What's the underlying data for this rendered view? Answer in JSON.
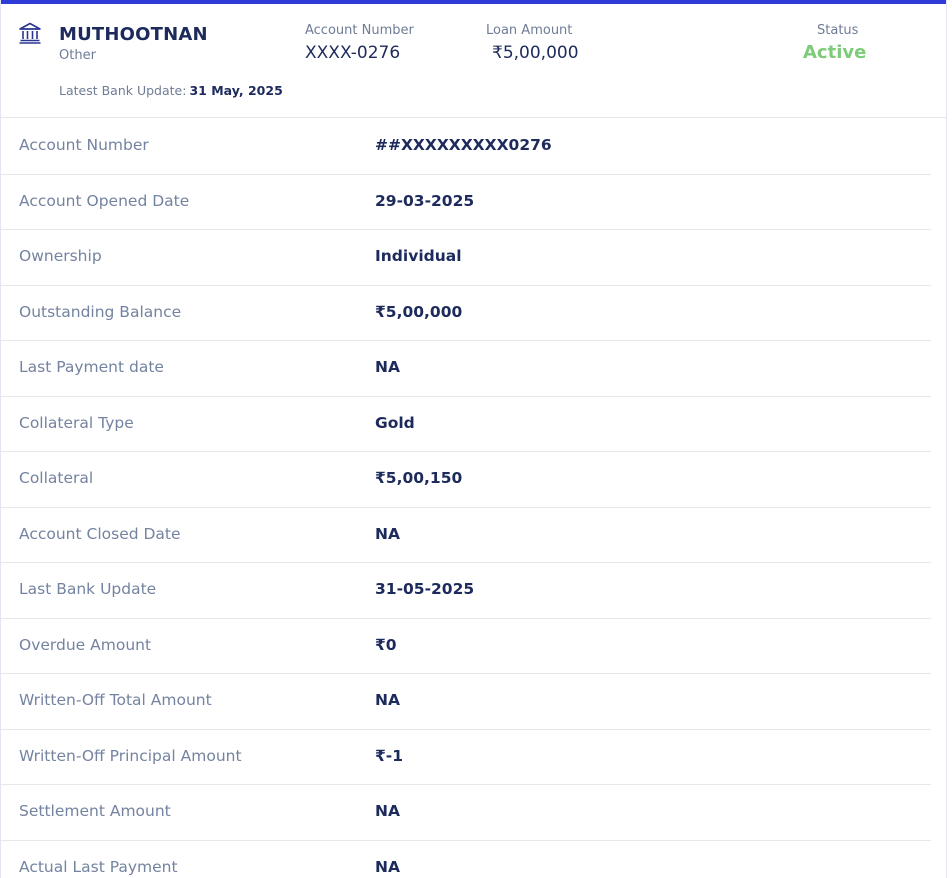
{
  "header": {
    "bank_name": "MUTHOOTNAN",
    "bank_type": "Other",
    "latest_update_label": "Latest Bank Update:",
    "latest_update_date": "31 May, 2025",
    "account_number_label": "Account Number",
    "account_number_value": "XXXX-0276",
    "loan_amount_label": "Loan Amount",
    "loan_amount_value": "₹5,00,000",
    "status_label": "Status",
    "status_value": "Active",
    "status_color": "#7ecb7a",
    "accent_color": "#2f3bd6",
    "icon": "bank-building-icon"
  },
  "details": [
    {
      "label": "Account Number",
      "value": "##XXXXXXXXX0276"
    },
    {
      "label": "Account Opened Date",
      "value": "29-03-2025"
    },
    {
      "label": "Ownership",
      "value": "Individual"
    },
    {
      "label": "Outstanding Balance",
      "value": "₹5,00,000"
    },
    {
      "label": "Last Payment date",
      "value": "NA"
    },
    {
      "label": "Collateral Type",
      "value": "Gold"
    },
    {
      "label": "Collateral",
      "value": "₹5,00,150"
    },
    {
      "label": "Account Closed Date",
      "value": "NA"
    },
    {
      "label": "Last Bank Update",
      "value": "31-05-2025"
    },
    {
      "label": "Overdue Amount",
      "value": "₹0"
    },
    {
      "label": "Written-Off Total Amount",
      "value": "NA"
    },
    {
      "label": "Written-Off Principal Amount",
      "value": "₹-1"
    },
    {
      "label": "Settlement Amount",
      "value": "NA"
    },
    {
      "label": "Actual Last Payment",
      "value": "NA"
    }
  ]
}
